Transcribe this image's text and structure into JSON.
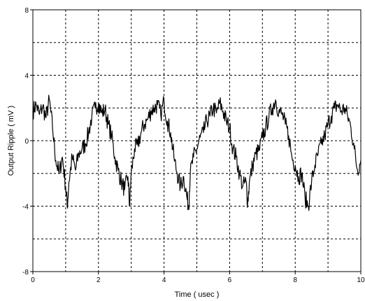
{
  "chart_data": {
    "type": "line",
    "title": "",
    "xlabel": "Time ( usec )",
    "ylabel": "Output Ripple ( mV )",
    "xlim": [
      0,
      10
    ],
    "ylim": [
      -8,
      8
    ],
    "xticks": [
      0,
      2,
      4,
      6,
      8,
      10
    ],
    "yticks": [
      -8,
      -4,
      0,
      4,
      8
    ],
    "xtick_labels": [
      "0",
      "2",
      "4",
      "6",
      "8",
      "10"
    ],
    "ytick_labels": [
      "-8",
      "-4",
      "0",
      "4",
      "8"
    ],
    "grid": true,
    "grid_style": "dashed",
    "series": [
      {
        "color": "#000000",
        "x": [
          0.0,
          0.1,
          0.2,
          0.3,
          0.4,
          0.5,
          0.6,
          0.7,
          0.8,
          0.9,
          1.0,
          1.05,
          1.1,
          1.2,
          1.3,
          1.4,
          1.5,
          1.6,
          1.7,
          1.8,
          1.9,
          2.0,
          2.1,
          2.2,
          2.3,
          2.4,
          2.5,
          2.6,
          2.7,
          2.8,
          2.9,
          2.95,
          3.0,
          3.1,
          3.2,
          3.3,
          3.4,
          3.5,
          3.6,
          3.7,
          3.8,
          3.9,
          4.0,
          4.1,
          4.2,
          4.3,
          4.4,
          4.5,
          4.6,
          4.7,
          4.75,
          4.8,
          4.9,
          5.0,
          5.1,
          5.2,
          5.3,
          5.4,
          5.5,
          5.6,
          5.7,
          5.8,
          5.9,
          6.0,
          6.1,
          6.2,
          6.3,
          6.4,
          6.5,
          6.55,
          6.6,
          6.7,
          6.8,
          6.9,
          7.0,
          7.1,
          7.2,
          7.3,
          7.4,
          7.5,
          7.6,
          7.7,
          7.8,
          7.9,
          8.0,
          8.1,
          8.2,
          8.3,
          8.4,
          8.5,
          8.6,
          8.7,
          8.8,
          8.9,
          9.0,
          9.1,
          9.2,
          9.3,
          9.4,
          9.5,
          9.6,
          9.7,
          9.8,
          9.9,
          10.0
        ],
        "y": [
          1.8,
          2.2,
          1.6,
          2.1,
          1.4,
          2.5,
          0.8,
          -1.2,
          -2.0,
          -1.0,
          -2.8,
          -4.0,
          -2.5,
          -1.0,
          -1.8,
          -0.8,
          -0.5,
          -0.2,
          0.5,
          1.5,
          2.0,
          2.3,
          1.7,
          1.9,
          1.0,
          0.3,
          -1.0,
          -1.8,
          -2.5,
          -3.0,
          -2.2,
          -4.0,
          -2.0,
          -0.5,
          -0.3,
          0.5,
          1.0,
          1.3,
          1.8,
          2.0,
          2.2,
          1.6,
          2.4,
          1.2,
          0.5,
          -1.0,
          -2.0,
          -2.8,
          -2.2,
          -3.5,
          -4.0,
          -2.0,
          -1.0,
          -0.5,
          0.2,
          0.5,
          1.2,
          1.5,
          2.0,
          1.7,
          2.3,
          1.8,
          1.2,
          0.8,
          -0.5,
          -1.0,
          -2.0,
          -2.8,
          -2.5,
          -3.8,
          -2.6,
          -1.5,
          -0.8,
          -0.6,
          0.2,
          0.8,
          1.5,
          2.0,
          2.5,
          1.8,
          1.6,
          1.0,
          0.3,
          -1.0,
          -1.5,
          -2.2,
          -2.0,
          -3.5,
          -4.0,
          -2.5,
          -1.5,
          -0.8,
          -0.2,
          0.3,
          1.0,
          1.5,
          2.0,
          2.2,
          1.8,
          2.0,
          1.5,
          0.8,
          -0.5,
          -1.8,
          -1.2
        ]
      }
    ]
  }
}
